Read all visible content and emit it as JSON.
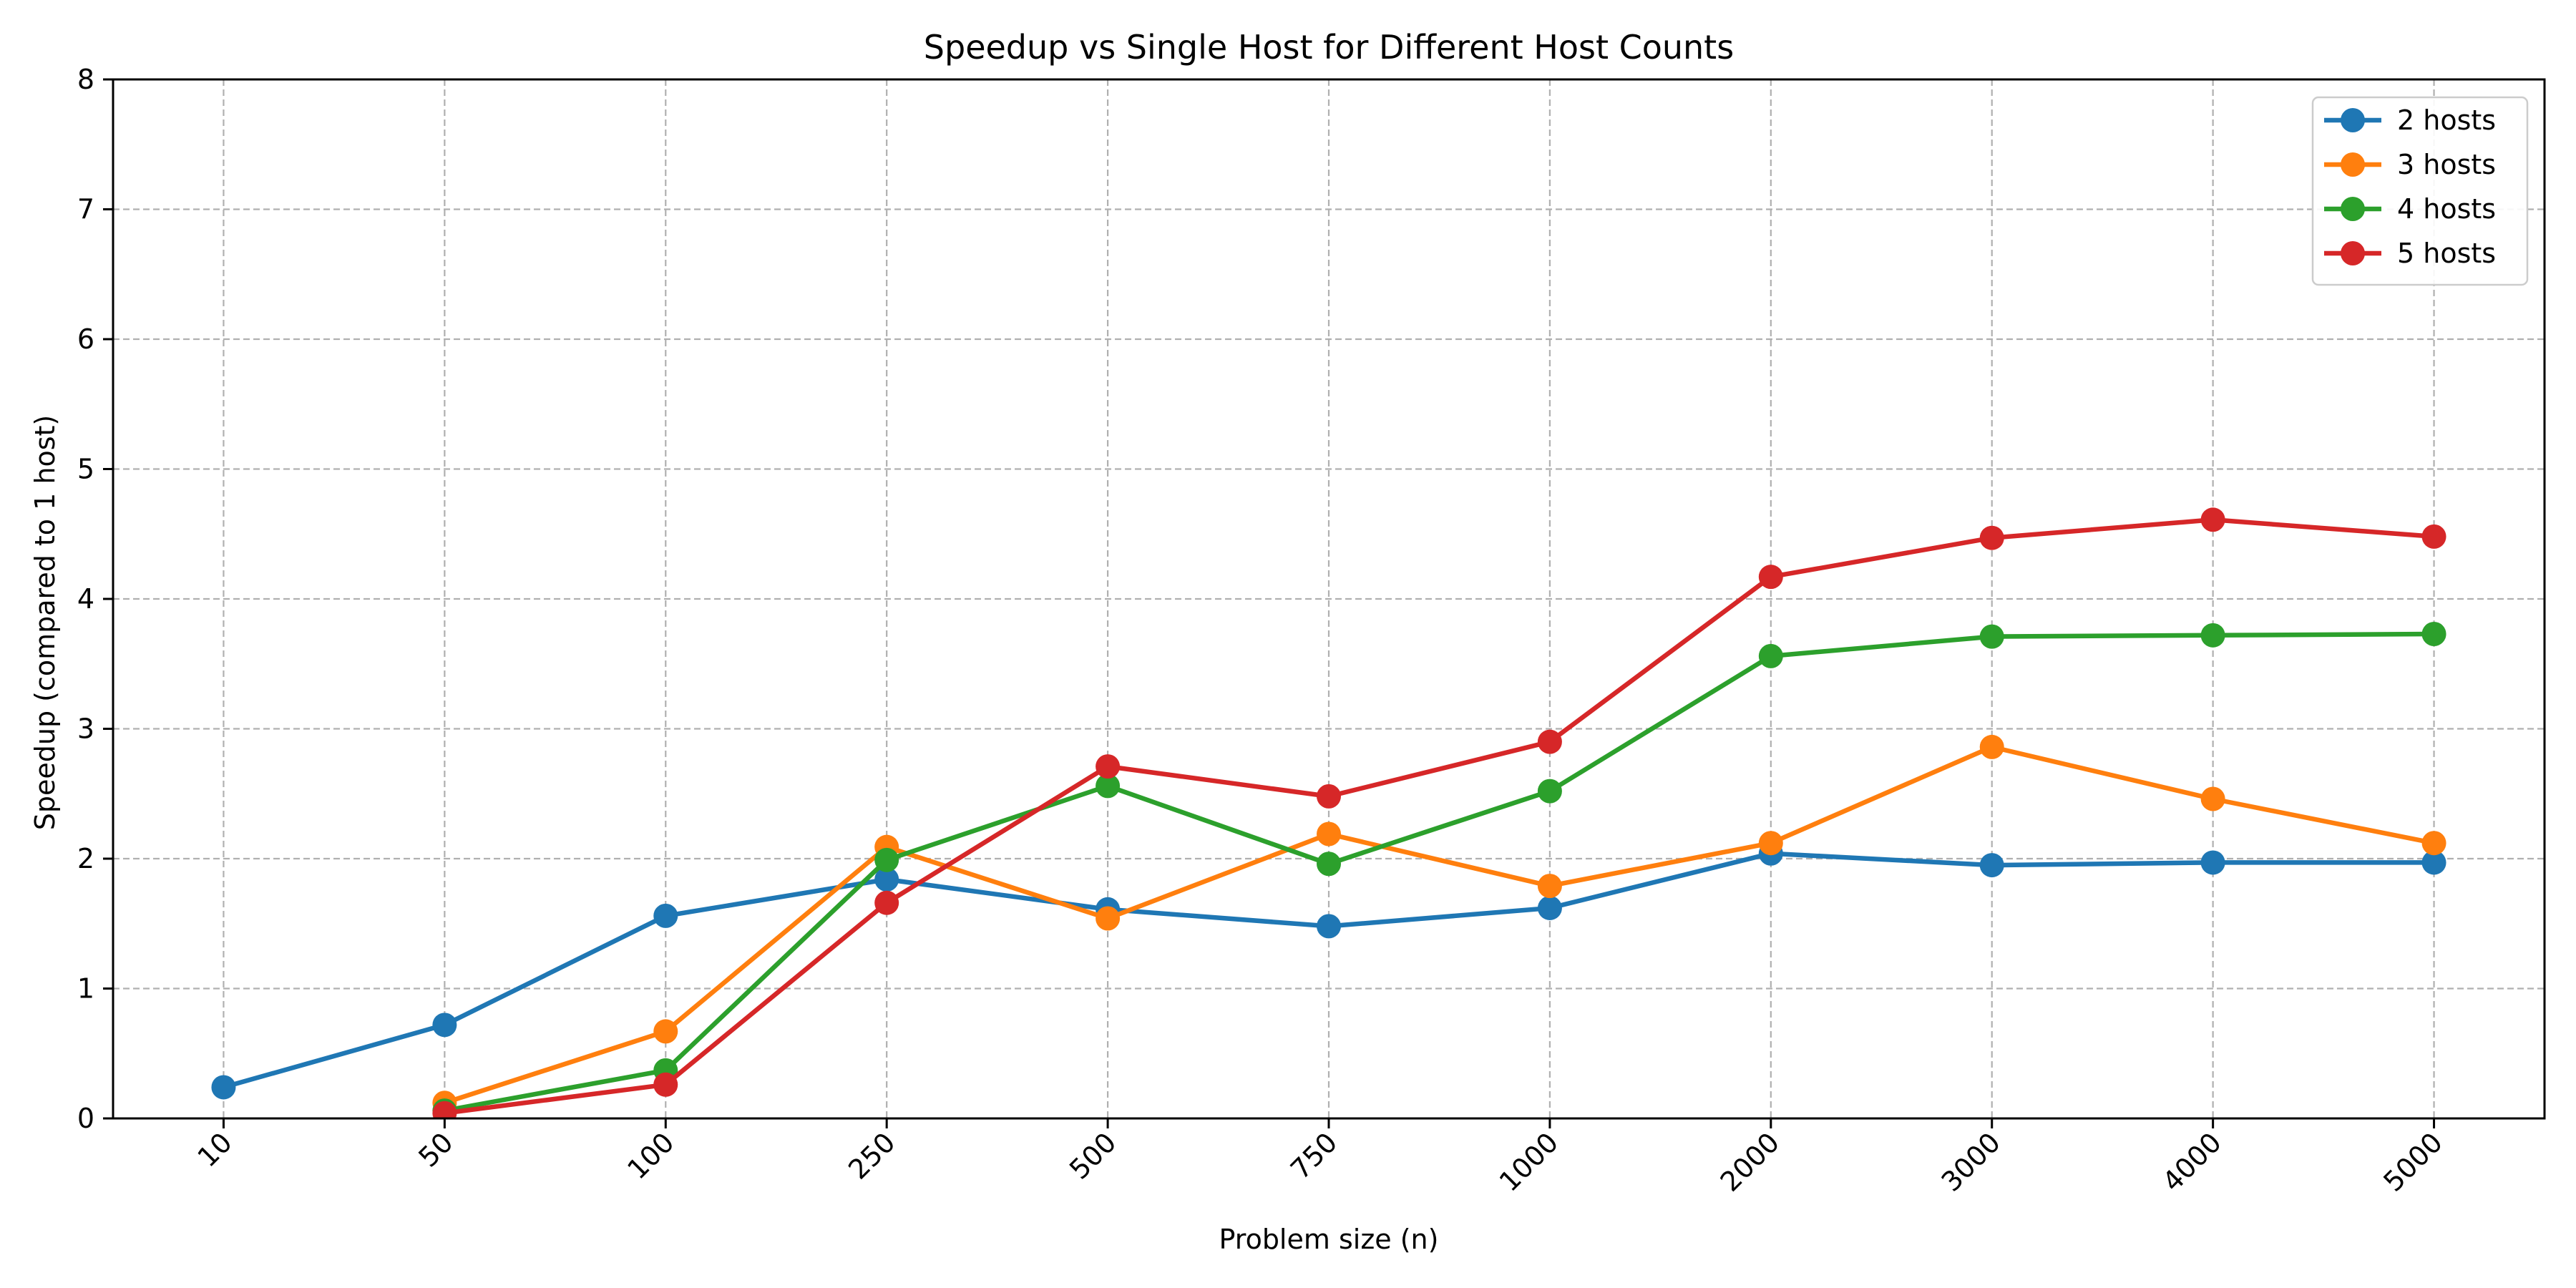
{
  "chart_data": {
    "type": "line",
    "title": "Speedup vs Single Host for Different Host Counts",
    "xlabel": "Problem size (n)",
    "ylabel": "Speedup (compared to 1 host)",
    "categories": [
      "10",
      "50",
      "100",
      "250",
      "500",
      "750",
      "1000",
      "2000",
      "3000",
      "4000",
      "5000"
    ],
    "ylim": [
      0,
      8
    ],
    "yticks": [
      "0",
      "1",
      "2",
      "3",
      "4",
      "5",
      "6",
      "7",
      "8"
    ],
    "grid": true,
    "legend_position": "top-right",
    "note": "",
    "series": [
      {
        "name": "2 hosts",
        "color": "#1f77b4",
        "values": [
          0.24,
          0.72,
          1.56,
          1.84,
          1.61,
          1.48,
          1.62,
          2.04,
          1.95,
          1.97,
          1.97
        ]
      },
      {
        "name": "3 hosts",
        "color": "#ff7f0e",
        "values": [
          null,
          0.12,
          0.67,
          2.09,
          1.54,
          2.19,
          1.79,
          2.12,
          2.86,
          2.46,
          2.12
        ]
      },
      {
        "name": "4 hosts",
        "color": "#2ca02c",
        "values": [
          null,
          0.06,
          0.37,
          1.99,
          2.56,
          1.96,
          2.52,
          3.56,
          3.71,
          3.72,
          3.73
        ]
      },
      {
        "name": "5 hosts",
        "color": "#d62728",
        "values": [
          null,
          0.04,
          0.26,
          1.66,
          2.71,
          2.48,
          2.9,
          4.17,
          4.47,
          4.61,
          4.48
        ]
      }
    ]
  }
}
